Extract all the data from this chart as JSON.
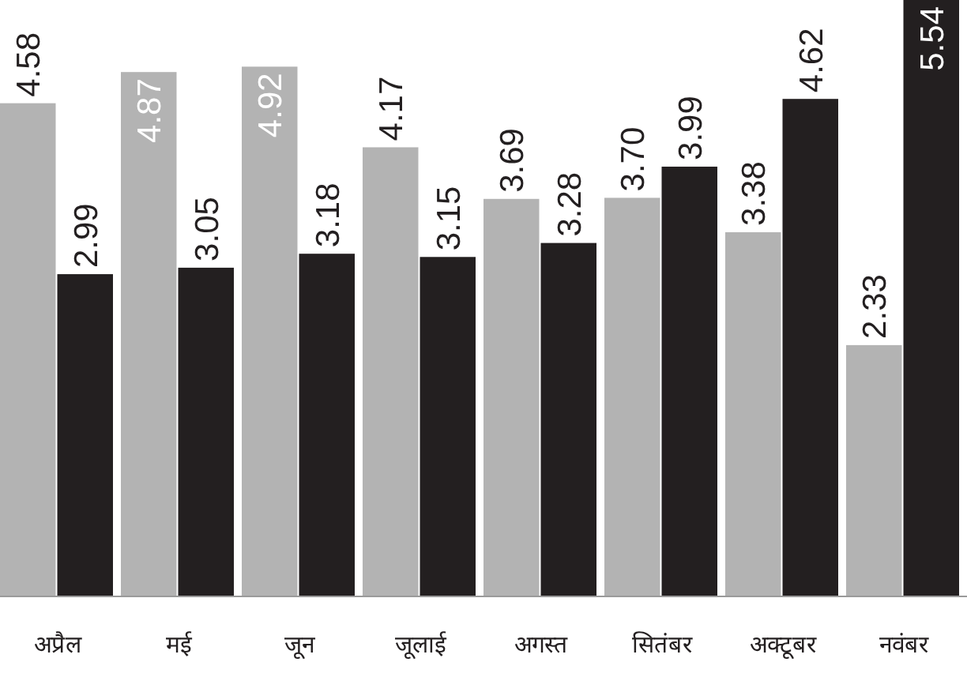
{
  "chart_data": {
    "type": "bar",
    "categories": [
      "अप्रैल",
      "मई",
      "जून",
      "जूलाई",
      "अगस्त",
      "सितंबर",
      "अक्टूबर",
      "नवंबर"
    ],
    "series": [
      {
        "color": "#b3b3b3",
        "values": [
          4.58,
          4.87,
          4.92,
          4.17,
          3.69,
          3.7,
          3.38,
          2.33
        ],
        "value_labels": [
          "4.58",
          "4.87",
          "4.92",
          "4.17",
          "3.69",
          "3.70",
          "3.38",
          "2.33"
        ]
      },
      {
        "color": "#231f20",
        "values": [
          2.99,
          3.05,
          3.18,
          3.15,
          3.28,
          3.99,
          4.62,
          5.54
        ],
        "value_labels": [
          "2.99",
          "3.05",
          "3.18",
          "3.15",
          "3.28",
          "3.99",
          "4.62",
          "5.54"
        ]
      }
    ]
  }
}
